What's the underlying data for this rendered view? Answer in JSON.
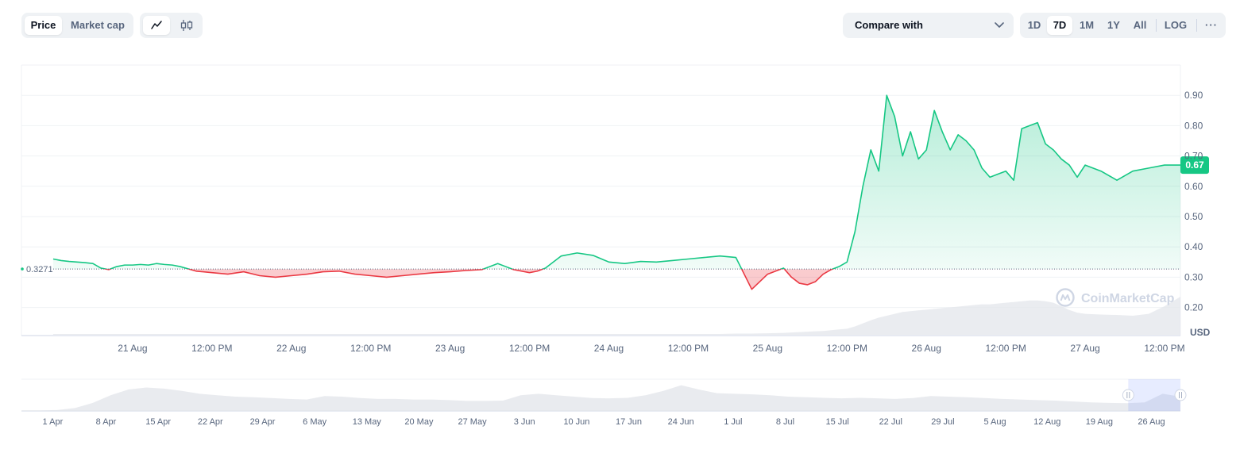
{
  "toolbar": {
    "type_options": [
      "Price",
      "Market cap"
    ],
    "type_active": "Price",
    "style_icons": [
      "line-chart-icon",
      "candlestick-icon"
    ],
    "style_active": "line-chart-icon",
    "compare_label": "Compare with",
    "compare_icon": "chevron-down-icon",
    "range_options": [
      "1D",
      "7D",
      "1M",
      "1Y",
      "All"
    ],
    "range_active": "7D",
    "scale_label": "LOG",
    "more_label": "···"
  },
  "chart_data": {
    "type": "area",
    "currency_label": "USD",
    "baseline": {
      "value": 0.3271,
      "label": "0.3271"
    },
    "current": {
      "value": 0.67,
      "label": "0.67"
    },
    "y_ticks": [
      {
        "value": 0.2,
        "label": "0.20"
      },
      {
        "value": 0.3,
        "label": "0.30"
      },
      {
        "value": 0.4,
        "label": "0.40"
      },
      {
        "value": 0.5,
        "label": "0.50"
      },
      {
        "value": 0.6,
        "label": "0.60"
      },
      {
        "value": 0.7,
        "label": "0.70"
      },
      {
        "value": 0.8,
        "label": "0.80"
      },
      {
        "value": 0.9,
        "label": "0.90"
      }
    ],
    "ylim": [
      0.11,
      1.0
    ],
    "x_ticks": [
      {
        "t": 0.5,
        "label": "21 Aug"
      },
      {
        "t": 1.0,
        "label": "12:00 PM"
      },
      {
        "t": 1.5,
        "label": "22 Aug"
      },
      {
        "t": 2.0,
        "label": "12:00 PM"
      },
      {
        "t": 2.5,
        "label": "23 Aug"
      },
      {
        "t": 3.0,
        "label": "12:00 PM"
      },
      {
        "t": 3.5,
        "label": "24 Aug"
      },
      {
        "t": 4.0,
        "label": "12:00 PM"
      },
      {
        "t": 4.5,
        "label": "25 Aug"
      },
      {
        "t": 5.0,
        "label": "12:00 PM"
      },
      {
        "t": 5.5,
        "label": "26 Aug"
      },
      {
        "t": 6.0,
        "label": "12:00 PM"
      },
      {
        "t": 6.5,
        "label": "27 Aug"
      },
      {
        "t": 7.0,
        "label": "12:00 PM"
      }
    ],
    "xlim": [
      -0.2,
      7.1
    ],
    "x": [
      0.0,
      0.05,
      0.1,
      0.15,
      0.2,
      0.25,
      0.3,
      0.35,
      0.4,
      0.45,
      0.5,
      0.55,
      0.6,
      0.65,
      0.7,
      0.75,
      0.8,
      0.9,
      1.0,
      1.1,
      1.2,
      1.3,
      1.4,
      1.5,
      1.6,
      1.7,
      1.8,
      1.9,
      2.0,
      2.1,
      2.2,
      2.3,
      2.4,
      2.5,
      2.6,
      2.7,
      2.8,
      2.9,
      3.0,
      3.05,
      3.1,
      3.2,
      3.3,
      3.4,
      3.5,
      3.6,
      3.7,
      3.8,
      3.9,
      4.0,
      4.1,
      4.2,
      4.3,
      4.4,
      4.5,
      4.6,
      4.65,
      4.7,
      4.75,
      4.8,
      4.85,
      4.9,
      4.95,
      5.0,
      5.05,
      5.1,
      5.15,
      5.2,
      5.25,
      5.3,
      5.35,
      5.4,
      5.45,
      5.5,
      5.55,
      5.6,
      5.65,
      5.7,
      5.75,
      5.8,
      5.85,
      5.9,
      5.95,
      6.0,
      6.05,
      6.1,
      6.15,
      6.2,
      6.25,
      6.3,
      6.35,
      6.4,
      6.45,
      6.5,
      6.6,
      6.7,
      6.8,
      6.9,
      7.0,
      7.1
    ],
    "price": [
      0.36,
      0.355,
      0.352,
      0.35,
      0.348,
      0.345,
      0.33,
      0.325,
      0.335,
      0.34,
      0.34,
      0.342,
      0.34,
      0.345,
      0.342,
      0.34,
      0.335,
      0.32,
      0.315,
      0.31,
      0.318,
      0.305,
      0.3,
      0.305,
      0.31,
      0.318,
      0.32,
      0.31,
      0.305,
      0.3,
      0.305,
      0.31,
      0.315,
      0.318,
      0.322,
      0.325,
      0.345,
      0.325,
      0.315,
      0.32,
      0.33,
      0.37,
      0.38,
      0.372,
      0.35,
      0.345,
      0.352,
      0.35,
      0.355,
      0.36,
      0.365,
      0.37,
      0.365,
      0.26,
      0.31,
      0.33,
      0.3,
      0.28,
      0.275,
      0.285,
      0.31,
      0.325,
      0.335,
      0.35,
      0.45,
      0.6,
      0.72,
      0.65,
      0.9,
      0.83,
      0.7,
      0.78,
      0.69,
      0.72,
      0.85,
      0.78,
      0.72,
      0.77,
      0.75,
      0.72,
      0.66,
      0.63,
      0.64,
      0.65,
      0.62,
      0.79,
      0.8,
      0.81,
      0.74,
      0.72,
      0.69,
      0.67,
      0.63,
      0.67,
      0.65,
      0.62,
      0.65,
      0.66,
      0.67,
      0.67
    ],
    "volume_rel": [
      0.02,
      0.02,
      0.02,
      0.02,
      0.02,
      0.02,
      0.02,
      0.02,
      0.02,
      0.02,
      0.02,
      0.02,
      0.02,
      0.02,
      0.02,
      0.02,
      0.02,
      0.02,
      0.02,
      0.02,
      0.02,
      0.02,
      0.02,
      0.02,
      0.02,
      0.02,
      0.02,
      0.02,
      0.02,
      0.02,
      0.02,
      0.02,
      0.02,
      0.02,
      0.02,
      0.02,
      0.02,
      0.02,
      0.02,
      0.02,
      0.02,
      0.02,
      0.02,
      0.02,
      0.02,
      0.02,
      0.02,
      0.02,
      0.02,
      0.02,
      0.02,
      0.02,
      0.03,
      0.03,
      0.04,
      0.05,
      0.06,
      0.07,
      0.08,
      0.09,
      0.1,
      0.12,
      0.14,
      0.16,
      0.22,
      0.3,
      0.38,
      0.45,
      0.5,
      0.55,
      0.6,
      0.62,
      0.64,
      0.66,
      0.68,
      0.7,
      0.72,
      0.74,
      0.76,
      0.78,
      0.8,
      0.8,
      0.82,
      0.84,
      0.86,
      0.88,
      0.9,
      0.9,
      0.88,
      0.84,
      0.75,
      0.65,
      0.58,
      0.55,
      0.53,
      0.52,
      0.5,
      0.55,
      0.75,
      1.0
    ],
    "navigator": {
      "x_ticks": [
        {
          "t": 0.027,
          "label": "1 Apr"
        },
        {
          "t": 0.073,
          "label": "8 Apr"
        },
        {
          "t": 0.118,
          "label": "15 Apr"
        },
        {
          "t": 0.163,
          "label": "22 Apr"
        },
        {
          "t": 0.208,
          "label": "29 Apr"
        },
        {
          "t": 0.253,
          "label": "6 May"
        },
        {
          "t": 0.298,
          "label": "13 May"
        },
        {
          "t": 0.343,
          "label": "20 May"
        },
        {
          "t": 0.389,
          "label": "27 May"
        },
        {
          "t": 0.434,
          "label": "3 Jun"
        },
        {
          "t": 0.479,
          "label": "10 Jun"
        },
        {
          "t": 0.524,
          "label": "17 Jun"
        },
        {
          "t": 0.569,
          "label": "24 Jun"
        },
        {
          "t": 0.614,
          "label": "1 Jul"
        },
        {
          "t": 0.659,
          "label": "8 Jul"
        },
        {
          "t": 0.704,
          "label": "15 Jul"
        },
        {
          "t": 0.75,
          "label": "22 Jul"
        },
        {
          "t": 0.795,
          "label": "29 Jul"
        },
        {
          "t": 0.84,
          "label": "5 Aug"
        },
        {
          "t": 0.885,
          "label": "12 Aug"
        },
        {
          "t": 0.93,
          "label": "19 Aug"
        },
        {
          "t": 0.975,
          "label": "26 Aug"
        }
      ],
      "selection": [
        0.955,
        1.0
      ],
      "volume_rel": [
        0.02,
        0.02,
        0.03,
        0.1,
        0.28,
        0.55,
        0.75,
        0.82,
        0.78,
        0.7,
        0.6,
        0.55,
        0.5,
        0.48,
        0.45,
        0.42,
        0.4,
        0.52,
        0.5,
        0.45,
        0.42,
        0.42,
        0.4,
        0.4,
        0.38,
        0.35,
        0.35,
        0.36,
        0.55,
        0.6,
        0.55,
        0.5,
        0.45,
        0.44,
        0.46,
        0.55,
        0.7,
        0.9,
        0.75,
        0.62,
        0.6,
        0.58,
        0.55,
        0.5,
        0.48,
        0.46,
        0.44,
        0.46,
        0.44,
        0.42,
        0.45,
        0.52,
        0.5,
        0.48,
        0.45,
        0.42,
        0.4,
        0.38,
        0.36,
        0.33,
        0.3,
        0.28,
        0.27,
        0.3,
        0.6,
        0.5
      ]
    }
  },
  "watermark": "CoinMarketCap"
}
